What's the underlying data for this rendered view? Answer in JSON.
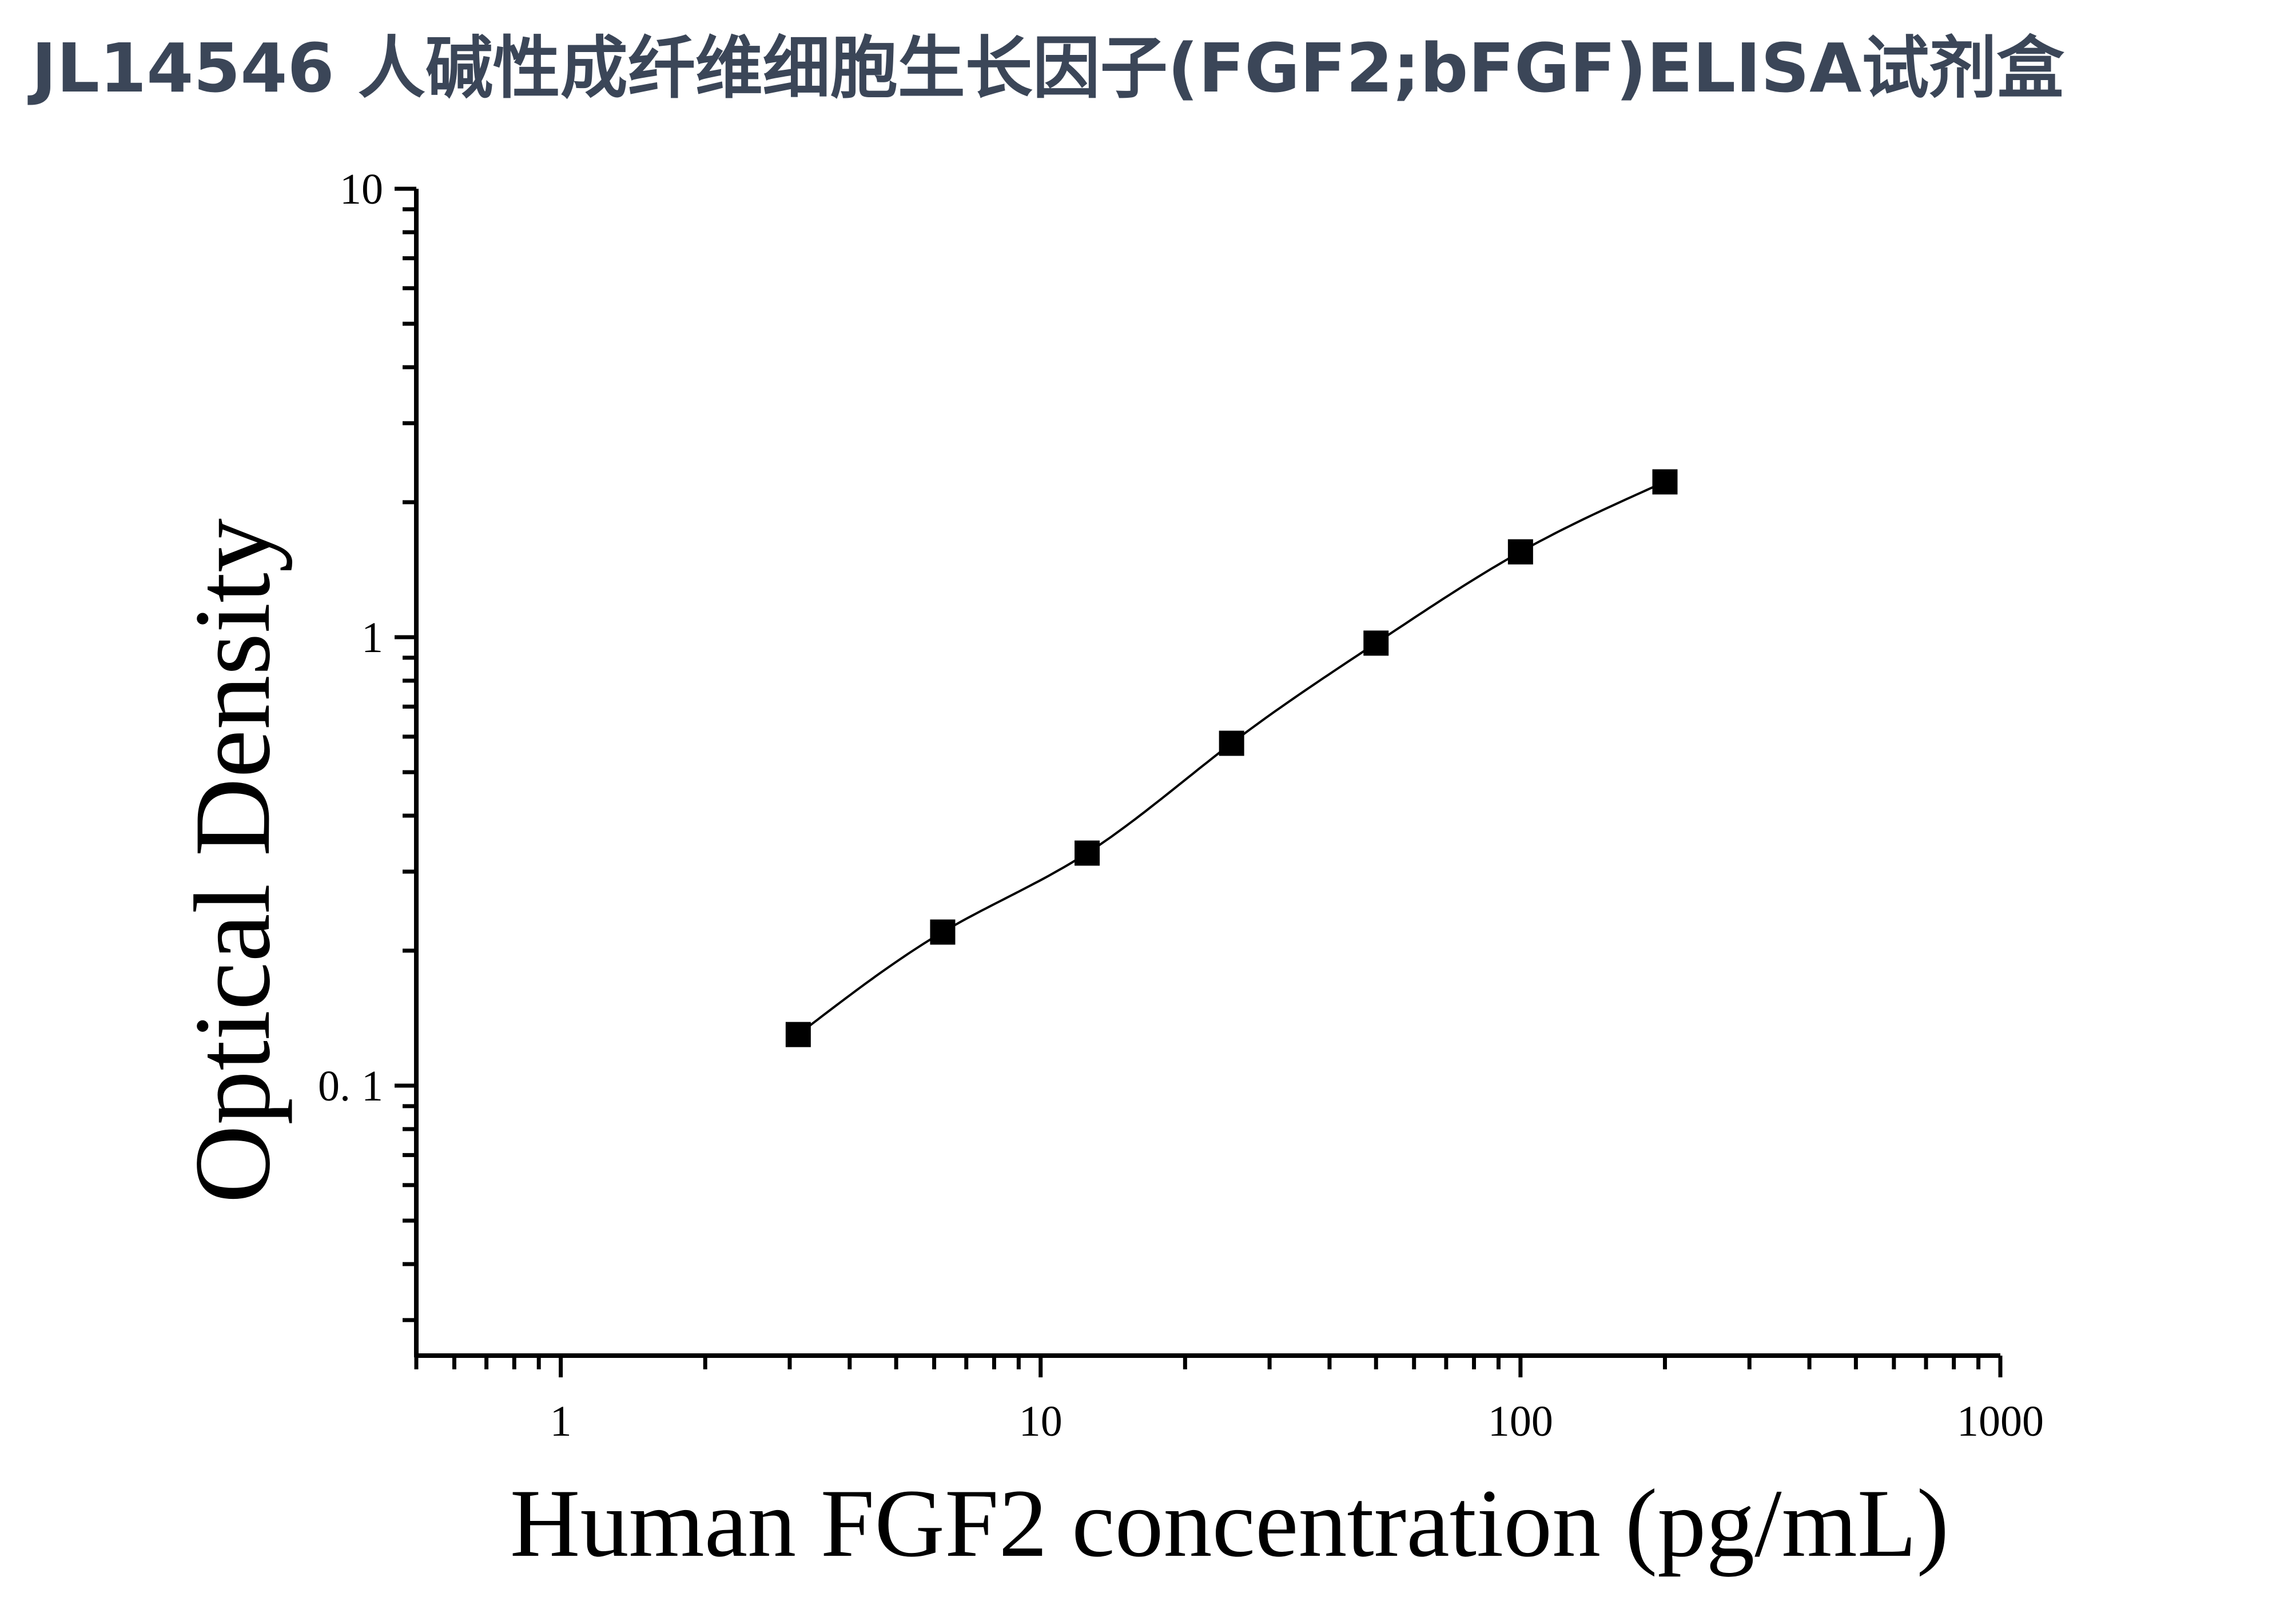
{
  "chart_data": {
    "type": "scatter",
    "title": "JL14546 人碱性成纤维细胞生长因子(FGF2;bFGF)ELISA试剂盒",
    "xlabel": "Human FGF2 concentration (pg/mL)",
    "ylabel": "Optical Density",
    "x_scale": "log",
    "y_scale": "log",
    "xlim": [
      0.5,
      1000
    ],
    "ylim": [
      0.025,
      10
    ],
    "x_ticks": [
      {
        "value": 1,
        "label": "1"
      },
      {
        "value": 10,
        "label": "10"
      },
      {
        "value": 100,
        "label": "100"
      },
      {
        "value": 1000,
        "label": "1000"
      }
    ],
    "y_ticks": [
      {
        "value": 0.1,
        "label": "0. 1"
      },
      {
        "value": 1,
        "label": "1"
      },
      {
        "value": 10,
        "label": "10"
      }
    ],
    "grid": false,
    "legend": "none",
    "marker": "square",
    "color": "#000000",
    "title_color": "#3b4658",
    "series": [
      {
        "x": [
          3.125,
          6.25,
          12.5,
          25,
          50,
          100,
          200
        ],
        "y": [
          0.13,
          0.22,
          0.33,
          0.58,
          0.97,
          1.55,
          2.22
        ]
      }
    ],
    "fit_curve": true
  }
}
